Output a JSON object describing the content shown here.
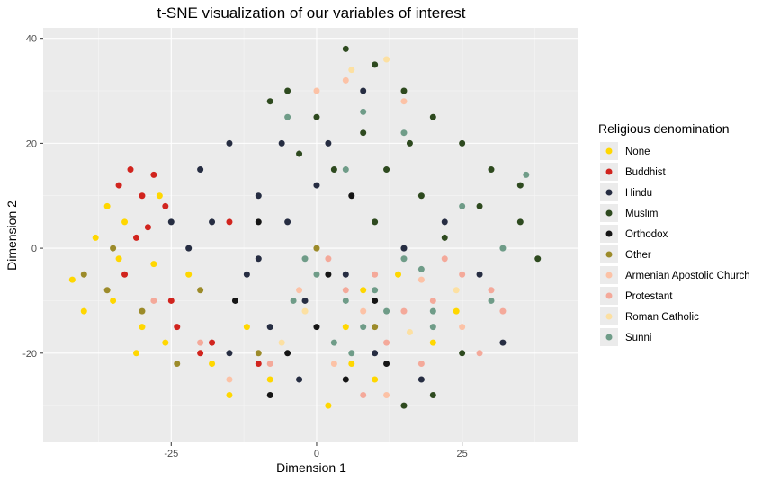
{
  "chart_data": {
    "type": "scatter",
    "title": "t-SNE visualization of our variables of interest",
    "xlabel": "Dimension 1",
    "ylabel": "Dimension 2",
    "xlim": [
      -47,
      45
    ],
    "ylim": [
      -37,
      42
    ],
    "x_ticks": [
      -25,
      0,
      25
    ],
    "y_ticks": [
      -20,
      0,
      20,
      40
    ],
    "x_tick_labels": [
      "-25",
      "0",
      "25"
    ],
    "y_tick_labels": [
      "-20",
      "0",
      "20",
      "40"
    ],
    "grid": true,
    "background": "#ebebeb",
    "legend": {
      "title": "Religious denomination",
      "position": "right"
    },
    "series": [
      {
        "name": "None",
        "color": "#FFD700",
        "points": [
          [
            -42,
            -6
          ],
          [
            -38,
            2
          ],
          [
            -35,
            -10
          ],
          [
            -33,
            5
          ],
          [
            -30,
            -15
          ],
          [
            -28,
            -3
          ],
          [
            -40,
            -12
          ],
          [
            -36,
            8
          ],
          [
            -31,
            -20
          ],
          [
            -27,
            10
          ],
          [
            -22,
            -5
          ],
          [
            -18,
            -22
          ],
          [
            -15,
            -28
          ],
          [
            -8,
            -25
          ],
          [
            2,
            -30
          ],
          [
            5,
            -15
          ],
          [
            8,
            -8
          ],
          [
            10,
            -25
          ],
          [
            14,
            -5
          ],
          [
            20,
            -18
          ],
          [
            24,
            -12
          ],
          [
            -26,
            -18
          ],
          [
            -34,
            -2
          ],
          [
            6,
            -22
          ],
          [
            -12,
            -15
          ]
        ]
      },
      {
        "name": "Buddhist",
        "color": "#D1241E",
        "points": [
          [
            -32,
            15
          ],
          [
            -30,
            10
          ],
          [
            -34,
            12
          ],
          [
            -28,
            14
          ],
          [
            -26,
            8
          ],
          [
            -29,
            4
          ],
          [
            -33,
            -5
          ],
          [
            -24,
            -15
          ],
          [
            -20,
            -20
          ],
          [
            -15,
            5
          ],
          [
            -10,
            -22
          ],
          [
            -31,
            2
          ],
          [
            -25,
            -10
          ],
          [
            -18,
            -18
          ]
        ]
      },
      {
        "name": "Hindu",
        "color": "#262D42",
        "points": [
          [
            -20,
            15
          ],
          [
            -15,
            20
          ],
          [
            -10,
            10
          ],
          [
            -18,
            5
          ],
          [
            -12,
            -5
          ],
          [
            -8,
            -15
          ],
          [
            -5,
            5
          ],
          [
            -2,
            -10
          ],
          [
            0,
            12
          ],
          [
            -15,
            -20
          ],
          [
            -22,
            0
          ],
          [
            -6,
            20
          ],
          [
            5,
            -5
          ],
          [
            10,
            -20
          ],
          [
            15,
            0
          ],
          [
            18,
            -25
          ],
          [
            -25,
            5
          ],
          [
            -3,
            -25
          ],
          [
            22,
            5
          ],
          [
            28,
            -5
          ],
          [
            32,
            -18
          ],
          [
            8,
            30
          ],
          [
            -10,
            -2
          ],
          [
            2,
            20
          ]
        ]
      },
      {
        "name": "Muslim",
        "color": "#2E4A1F",
        "points": [
          [
            5,
            38
          ],
          [
            10,
            35
          ],
          [
            -5,
            30
          ],
          [
            0,
            25
          ],
          [
            8,
            22
          ],
          [
            15,
            30
          ],
          [
            20,
            25
          ],
          [
            25,
            20
          ],
          [
            30,
            15
          ],
          [
            12,
            15
          ],
          [
            18,
            10
          ],
          [
            22,
            2
          ],
          [
            28,
            8
          ],
          [
            35,
            5
          ],
          [
            38,
            -2
          ],
          [
            3,
            15
          ],
          [
            -8,
            28
          ],
          [
            15,
            -30
          ],
          [
            20,
            -28
          ],
          [
            35,
            12
          ],
          [
            10,
            5
          ],
          [
            25,
            -20
          ],
          [
            -3,
            18
          ],
          [
            16,
            20
          ]
        ]
      },
      {
        "name": "Orthodox",
        "color": "#151515",
        "points": [
          [
            -5,
            -20
          ],
          [
            0,
            -15
          ],
          [
            5,
            -25
          ],
          [
            -10,
            5
          ],
          [
            2,
            -5
          ],
          [
            10,
            -10
          ],
          [
            -8,
            -28
          ],
          [
            12,
            -22
          ],
          [
            -14,
            -10
          ],
          [
            6,
            10
          ]
        ]
      },
      {
        "name": "Other",
        "color": "#9C8B2A",
        "points": [
          [
            -40,
            -5
          ],
          [
            -35,
            0
          ],
          [
            -30,
            -12
          ],
          [
            -20,
            -8
          ],
          [
            -10,
            -20
          ],
          [
            0,
            0
          ],
          [
            10,
            -15
          ],
          [
            -36,
            -8
          ],
          [
            -24,
            -22
          ]
        ]
      },
      {
        "name": "Armenian Apostolic Church",
        "color": "#FCC2A6",
        "points": [
          [
            0,
            30
          ],
          [
            5,
            32
          ],
          [
            15,
            28
          ],
          [
            -3,
            -8
          ],
          [
            8,
            -12
          ],
          [
            18,
            -6
          ],
          [
            25,
            -15
          ],
          [
            12,
            -28
          ],
          [
            -15,
            -25
          ],
          [
            3,
            -22
          ]
        ]
      },
      {
        "name": "Protestant",
        "color": "#F4A99A",
        "points": [
          [
            5,
            -8
          ],
          [
            10,
            -5
          ],
          [
            15,
            -12
          ],
          [
            20,
            -10
          ],
          [
            25,
            -5
          ],
          [
            30,
            -8
          ],
          [
            28,
            -20
          ],
          [
            18,
            -22
          ],
          [
            -20,
            -18
          ],
          [
            -8,
            -22
          ],
          [
            2,
            -2
          ],
          [
            22,
            -2
          ],
          [
            12,
            -18
          ],
          [
            -28,
            -10
          ],
          [
            32,
            -12
          ],
          [
            8,
            -28
          ]
        ]
      },
      {
        "name": "Roman Catholic",
        "color": "#FCE0A2",
        "points": [
          [
            12,
            36
          ],
          [
            6,
            34
          ],
          [
            -2,
            -12
          ],
          [
            16,
            -16
          ],
          [
            24,
            -8
          ],
          [
            -6,
            -18
          ]
        ]
      },
      {
        "name": "Sunni",
        "color": "#6F9C88",
        "points": [
          [
            0,
            -5
          ],
          [
            5,
            -10
          ],
          [
            10,
            -8
          ],
          [
            15,
            -2
          ],
          [
            20,
            -12
          ],
          [
            3,
            -18
          ],
          [
            8,
            -15
          ],
          [
            -2,
            -2
          ],
          [
            12,
            -12
          ],
          [
            30,
            -10
          ],
          [
            25,
            8
          ],
          [
            15,
            22
          ],
          [
            5,
            15
          ],
          [
            -5,
            25
          ],
          [
            20,
            -15
          ],
          [
            32,
            0
          ],
          [
            6,
            -20
          ],
          [
            -4,
            -10
          ],
          [
            18,
            -4
          ],
          [
            8,
            26
          ],
          [
            36,
            14
          ]
        ]
      }
    ]
  }
}
